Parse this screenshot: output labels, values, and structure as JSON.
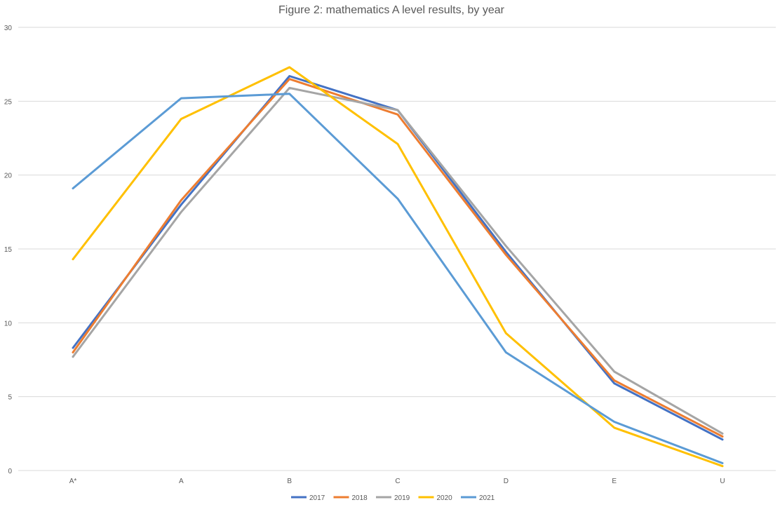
{
  "chart_data": {
    "type": "line",
    "title": "Figure 2: mathematics A level results, by year",
    "categories": [
      "A*",
      "A",
      "B",
      "C",
      "D",
      "E",
      "U"
    ],
    "ylim": [
      0,
      30
    ],
    "yticks": [
      "0",
      "5",
      "10",
      "15",
      "20",
      "25",
      "30"
    ],
    "grid": true,
    "legend": "bottom",
    "series": [
      {
        "name": "2017",
        "color": "#4472c4",
        "values": [
          8.3,
          18.0,
          26.7,
          24.4,
          14.8,
          5.9,
          2.1
        ]
      },
      {
        "name": "2018",
        "color": "#ed7d31",
        "values": [
          8.0,
          18.3,
          26.5,
          24.1,
          14.6,
          6.1,
          2.3
        ]
      },
      {
        "name": "2019",
        "color": "#a5a5a5",
        "values": [
          7.7,
          17.5,
          25.9,
          24.4,
          15.2,
          6.7,
          2.5
        ]
      },
      {
        "name": "2020",
        "color": "#ffc000",
        "values": [
          14.3,
          23.8,
          27.3,
          22.1,
          9.3,
          2.9,
          0.3
        ]
      },
      {
        "name": "2021",
        "color": "#5b9bd5",
        "values": [
          19.1,
          25.2,
          25.5,
          18.4,
          8.0,
          3.3,
          0.5
        ]
      }
    ]
  }
}
